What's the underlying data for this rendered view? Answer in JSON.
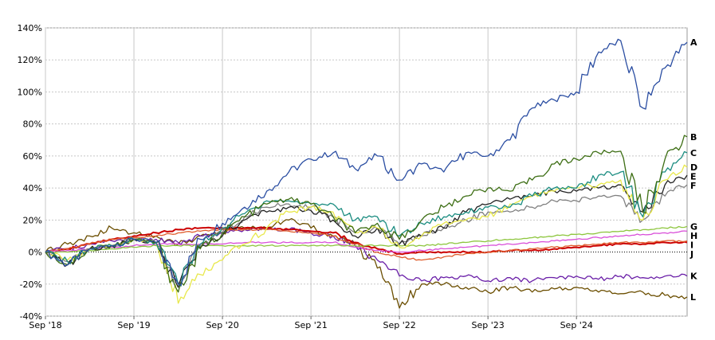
{
  "chart_data": {
    "type": "line",
    "title": "",
    "xlabel": "",
    "ylabel": "",
    "x_ticks": [
      "Sep '18",
      "Sep '19",
      "Sep '20",
      "Sep '21",
      "Sep '22",
      "Sep '23",
      "Sep '24"
    ],
    "y_ticks": [
      140,
      120,
      100,
      80,
      60,
      40,
      20,
      0,
      -20,
      -40
    ],
    "y_tick_labels": [
      "140%",
      "120%",
      "100%",
      "80%",
      "60%",
      "40%",
      "20%",
      "0%",
      "-20%",
      "-40%"
    ],
    "ylim": [
      -40,
      140
    ],
    "xlim": [
      "Sep '18",
      "Dec '25"
    ],
    "grid": true,
    "legend": "end-of-line labels (right)",
    "x": [
      "Sep '18",
      "Dec '18",
      "Mar '19",
      "Jun '19",
      "Sep '19",
      "Dec '19",
      "Mar '20",
      "Jun '20",
      "Sep '20",
      "Dec '20",
      "Mar '21",
      "Jun '21",
      "Sep '21",
      "Dec '21",
      "Mar '22",
      "Jun '22",
      "Sep '22",
      "Dec '22",
      "Mar '23",
      "Jun '23",
      "Sep '23",
      "Dec '23",
      "Mar '24",
      "Jun '24",
      "Sep '24",
      "Dec '24",
      "Mar '25",
      "Jun '25",
      "Sep '25",
      "Dec '25"
    ],
    "series": [
      {
        "name": "A",
        "color": "#2b4ea2",
        "values": [
          0,
          -8,
          2,
          4,
          8,
          6,
          -20,
          8,
          18,
          28,
          38,
          50,
          58,
          62,
          52,
          60,
          45,
          55,
          50,
          62,
          60,
          70,
          90,
          95,
          100,
          125,
          132,
          90,
          115,
          131
        ]
      },
      {
        "name": "B",
        "color": "#3d6e14",
        "values": [
          0,
          -8,
          2,
          4,
          8,
          6,
          -25,
          2,
          12,
          22,
          30,
          33,
          30,
          22,
          12,
          18,
          8,
          20,
          28,
          35,
          40,
          38,
          45,
          55,
          58,
          62,
          63,
          25,
          58,
          72
        ]
      },
      {
        "name": "C",
        "color": "#1a8c80",
        "values": [
          0,
          -6,
          2,
          4,
          8,
          6,
          -20,
          5,
          15,
          24,
          32,
          32,
          30,
          30,
          20,
          22,
          10,
          18,
          22,
          25,
          28,
          28,
          35,
          40,
          40,
          48,
          50,
          22,
          50,
          62
        ]
      },
      {
        "name": "D",
        "color": "#e8e84a",
        "values": [
          0,
          -5,
          2,
          4,
          8,
          6,
          -32,
          -14,
          -5,
          5,
          15,
          25,
          28,
          25,
          12,
          15,
          3,
          10,
          18,
          20,
          22,
          30,
          35,
          38,
          40,
          42,
          45,
          20,
          45,
          53
        ]
      },
      {
        "name": "E",
        "color": "#222222",
        "values": [
          0,
          -8,
          2,
          4,
          8,
          6,
          -22,
          3,
          10,
          20,
          25,
          28,
          26,
          20,
          10,
          15,
          5,
          10,
          15,
          25,
          30,
          33,
          35,
          38,
          38,
          40,
          42,
          25,
          42,
          48
        ]
      },
      {
        "name": "F",
        "color": "#808080",
        "values": [
          0,
          -6,
          2,
          4,
          8,
          6,
          -20,
          4,
          12,
          22,
          28,
          30,
          28,
          22,
          12,
          15,
          5,
          10,
          15,
          20,
          25,
          25,
          28,
          32,
          32,
          35,
          35,
          20,
          35,
          42
        ]
      },
      {
        "name": "G",
        "color": "#8ec63f",
        "values": [
          0,
          0,
          1,
          2,
          3,
          4,
          4,
          4,
          4,
          4,
          4,
          4,
          4,
          4,
          4,
          4,
          4,
          4,
          5,
          6,
          7,
          8,
          9,
          10,
          11,
          12,
          13,
          14,
          15,
          16
        ]
      },
      {
        "name": "H",
        "color": "#d94fd9",
        "values": [
          0,
          1,
          2,
          3,
          4,
          5,
          5,
          5,
          5,
          6,
          6,
          6,
          6,
          6,
          3,
          1,
          0,
          1,
          2,
          3,
          4,
          5,
          6,
          7,
          8,
          9,
          10,
          11,
          12,
          13
        ]
      },
      {
        "name": "I",
        "color": "#e06030",
        "values": [
          0,
          2,
          5,
          8,
          9,
          10,
          12,
          13,
          14,
          14,
          14,
          13,
          12,
          10,
          5,
          0,
          -3,
          -5,
          -3,
          -1,
          0,
          1,
          2,
          3,
          4,
          5,
          6,
          6,
          7,
          7
        ]
      },
      {
        "name": "J",
        "color": "#cc0000",
        "values": [
          0,
          2,
          5,
          8,
          10,
          12,
          14,
          15,
          15,
          15,
          15,
          14,
          13,
          12,
          6,
          2,
          -1,
          0,
          0,
          0,
          0,
          1,
          1,
          2,
          3,
          4,
          5,
          5,
          6,
          6
        ]
      },
      {
        "name": "K",
        "color": "#6a1fa8",
        "values": [
          0,
          2,
          5,
          7,
          8,
          8,
          6,
          10,
          12,
          14,
          14,
          14,
          12,
          10,
          4,
          -5,
          -15,
          -18,
          -16,
          -15,
          -18,
          -16,
          -18,
          -16,
          -15,
          -17,
          -15,
          -16,
          -15,
          -15
        ]
      },
      {
        "name": "L",
        "color": "#6b4e00",
        "values": [
          0,
          5,
          10,
          15,
          12,
          10,
          5,
          10,
          12,
          15,
          15,
          20,
          15,
          10,
          5,
          -10,
          -35,
          -20,
          -20,
          -22,
          -25,
          -22,
          -25,
          -23,
          -22,
          -25,
          -26,
          -25,
          -27,
          -28
        ]
      }
    ]
  }
}
